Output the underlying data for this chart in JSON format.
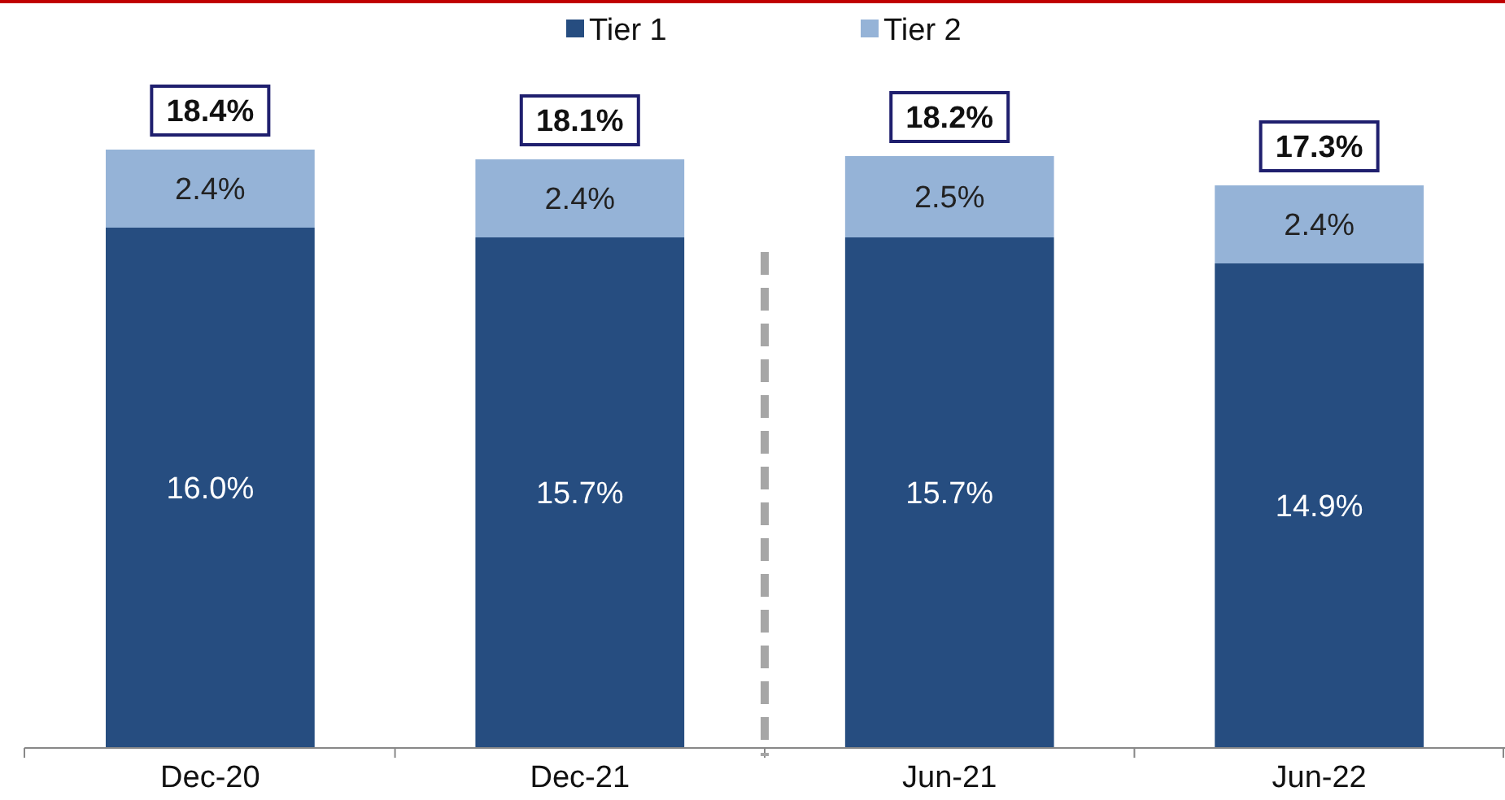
{
  "chart_data": {
    "type": "bar",
    "stacked": true,
    "categories": [
      "Dec-20",
      "Dec-21",
      "Jun-21",
      "Jun-22"
    ],
    "series": [
      {
        "name": "Tier 1",
        "color": "#264d80",
        "values": [
          16.0,
          15.7,
          15.7,
          14.9
        ],
        "value_labels": [
          "16.0%",
          "15.7%",
          "15.7%",
          "14.9%"
        ]
      },
      {
        "name": "Tier 2",
        "color": "#95b3d7",
        "values": [
          2.4,
          2.4,
          2.5,
          2.4
        ],
        "value_labels": [
          "2.4%",
          "2.4%",
          "2.5%",
          "2.4%"
        ]
      }
    ],
    "totals": [
      "18.4%",
      "18.1%",
      "18.2%",
      "17.3%"
    ],
    "legend": "top",
    "grid": false
  }
}
